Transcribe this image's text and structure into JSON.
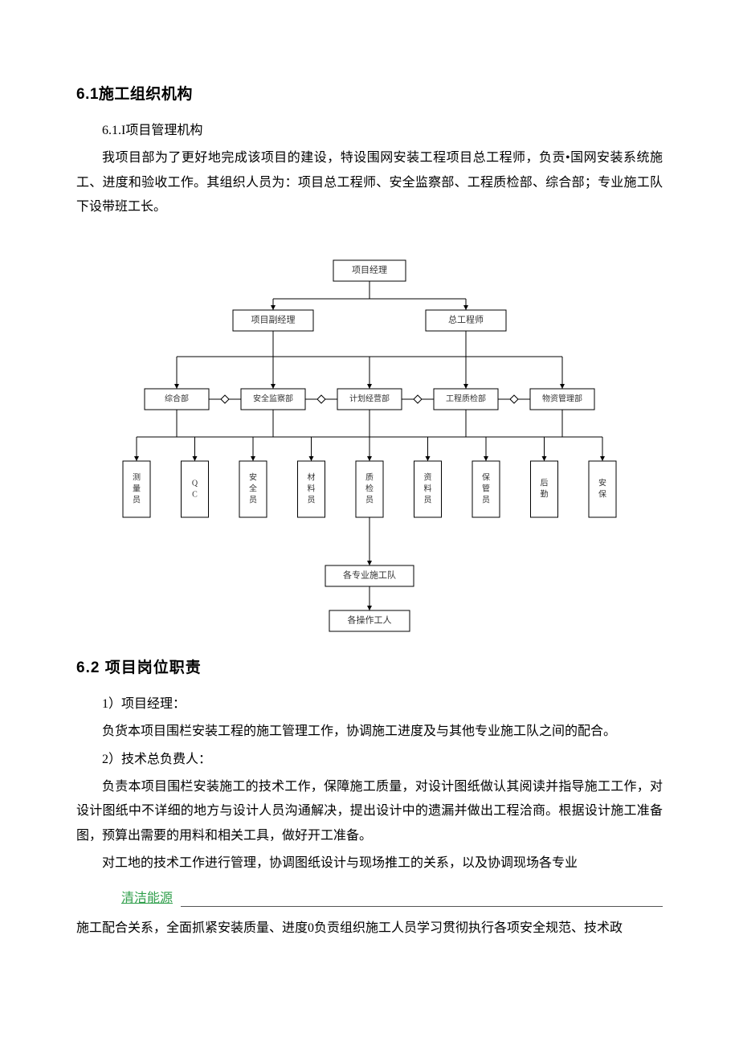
{
  "section61": {
    "title": "6.1施工组织机构",
    "sub": "6.1.I项目管理机构",
    "p1": "我项目部为了更好地完成该项目的建设，特设围网安装工程项目总工程师，负贡•国网安装系统施工、进度和验收工作。其组织人员为：项目总工程师、安全监察部、工程质检部、综合部；专业施工队下设带班工长。"
  },
  "orgchart": {
    "type": "tree",
    "colors": {
      "node_fill": "#ffffff",
      "node_stroke": "#000000",
      "edge": "#000000",
      "text": "#333333",
      "diamond_fill": "#ffffff"
    },
    "stroke_width": 1,
    "font_size": 11,
    "font_size_small": 10,
    "level1": {
      "label": "项目经理"
    },
    "level2": [
      {
        "label": "项目副经理"
      },
      {
        "label": "总工程师"
      }
    ],
    "level3": [
      {
        "label": "综合部"
      },
      {
        "label": "安全监察部"
      },
      {
        "label": "计划经营部"
      },
      {
        "label": "工程质检部"
      },
      {
        "label": "物资管理部"
      }
    ],
    "level4": [
      {
        "label": "测量员"
      },
      {
        "label": "QC"
      },
      {
        "label": "安全员"
      },
      {
        "label": "材料员"
      },
      {
        "label": "质检员"
      },
      {
        "label": "资料员"
      },
      {
        "label": "保管员"
      },
      {
        "label": "后勤"
      },
      {
        "label": "安保"
      }
    ],
    "level5": {
      "label": "各专业施工队"
    },
    "level6": {
      "label": "各操作工人"
    }
  },
  "section62": {
    "title": "6.2 项目岗位职责",
    "item1_h": "1）项目经理：",
    "item1_p": "负货本项目围栏安装工程的施工管理工作，协调施工进度及与其他专业施工队之间的配合。",
    "item2_h": "2）技术总负费人：",
    "item2_p1": "负责本项目围栏安装施工的技术工作，保障施工质量，对设计图纸做认其阅读并指导施工工作，对设计图纸中不详细的地方与设计人员沟通解决，提出设计中的遗漏并做出工程洽商。根据设计施工准备图，预算出需要的用料和相关工具，做好开工准备。",
    "item2_p2": "对工地的技术工作进行管理，协调图纸设计与现场推工的关系，以及协调现场各专业",
    "link": "清洁能源",
    "item2_p3": "施工配合关系，全面抓紧安装质量、进度0负贡组织施工人员学习贯彻执行各项安全规范、技术政"
  }
}
